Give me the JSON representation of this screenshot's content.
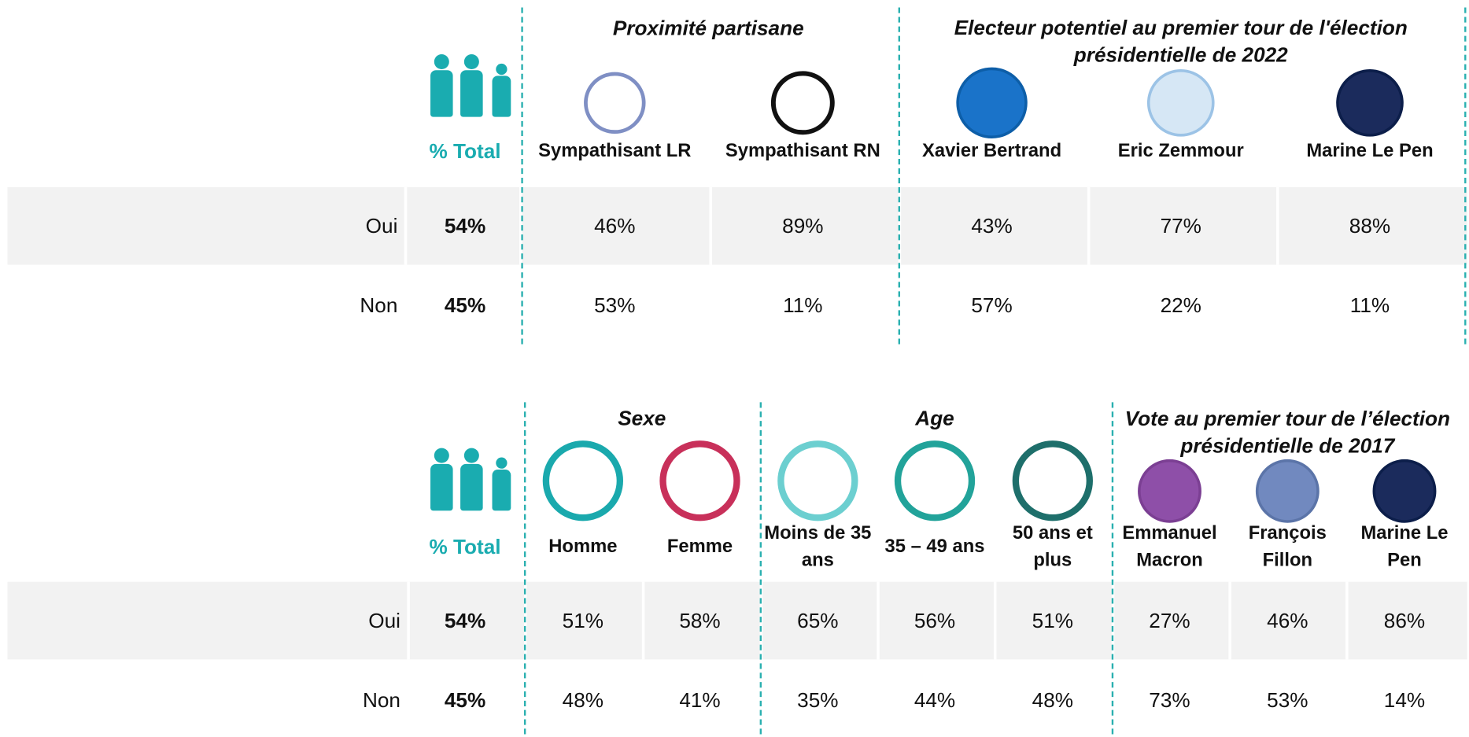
{
  "tables": [
    {
      "total_label": "% Total",
      "groups": [
        {
          "title": "Proximité partisane"
        },
        {
          "title": "Electeur potentiel au premier tour de l'élection présidentielle de 2022"
        }
      ],
      "columns": [
        "Sympathisant LR",
        "Sympathisant RN",
        "Xavier Bertrand",
        "Eric Zemmour",
        "Marine Le Pen"
      ],
      "rows": [
        {
          "label": "Oui",
          "total": "54%",
          "values": [
            "46%",
            "89%",
            "43%",
            "77%",
            "88%"
          ]
        },
        {
          "label": "Non",
          "total": "45%",
          "values": [
            "53%",
            "11%",
            "57%",
            "22%",
            "11%"
          ]
        }
      ]
    },
    {
      "total_label": "% Total",
      "groups": [
        {
          "title": "Sexe"
        },
        {
          "title": "Age"
        },
        {
          "title": "Vote au premier tour de l’élection présidentielle de 2017"
        }
      ],
      "columns": [
        "Homme",
        "Femme",
        "Moins de 35 ans",
        "35 – 49 ans",
        "50 ans et plus",
        "Emmanuel Macron",
        "François Fillon",
        "Marine Le Pen"
      ],
      "rows": [
        {
          "label": "Oui",
          "total": "54%",
          "values": [
            "51%",
            "58%",
            "65%",
            "56%",
            "51%",
            "27%",
            "46%",
            "86%"
          ]
        },
        {
          "label": "Non",
          "total": "45%",
          "values": [
            "48%",
            "41%",
            "35%",
            "44%",
            "48%",
            "73%",
            "53%",
            "14%"
          ]
        }
      ]
    }
  ]
}
